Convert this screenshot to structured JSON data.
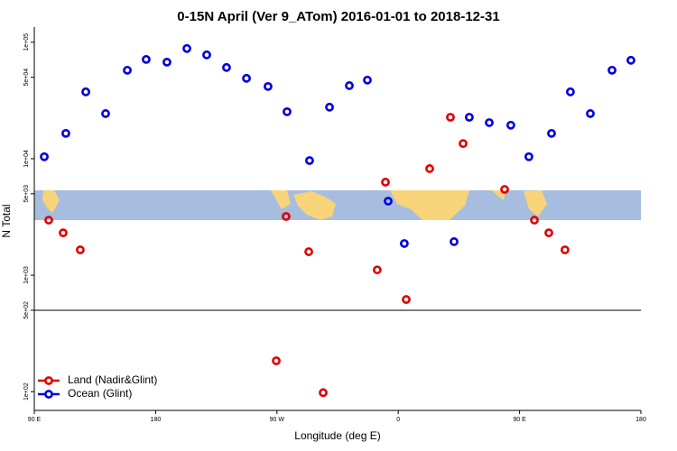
{
  "chart_data": {
    "type": "scatter",
    "title": "0-15N April (Ver 9_ATom)   2016-01-01 to 2018-12-31",
    "x_label": "Longitude (deg E)",
    "y_label": "N Total",
    "log_y": true,
    "legend": "lower left",
    "xlim": [
      90,
      540
    ],
    "xticks": [
      {
        "value": 90,
        "label": "90 E"
      },
      {
        "value": 180,
        "label": "180"
      },
      {
        "value": 270,
        "label": "90 W"
      },
      {
        "value": 360,
        "label": "0"
      },
      {
        "value": 450,
        "label": "90 E"
      },
      {
        "value": 540,
        "label": "180"
      }
    ],
    "ylim": [
      69,
      135000
    ],
    "yticks": [
      {
        "value": 100000,
        "label": "1e+05"
      },
      {
        "value": 50000,
        "label": "5e+04"
      },
      {
        "value": 10000,
        "label": "1e+04"
      },
      {
        "value": 5000,
        "label": "5e+03"
      },
      {
        "value": 1000,
        "label": "1e+03"
      },
      {
        "value": 500,
        "label": "5e+02"
      },
      {
        "value": 100,
        "label": "1e+02"
      }
    ],
    "series": [
      {
        "name": "Land (Nadir&Glint)",
        "color": "#e00000",
        "x": [
          100.7,
          111.4,
          124.1,
          276.8,
          269.5,
          293.6,
          304.3,
          344.4,
          350.5,
          365.9,
          383.3,
          398.7,
          408.1,
          438.9,
          461,
          471.7,
          483.7
        ],
        "values": [
          2970,
          2310,
          1650,
          3190,
          184,
          1590,
          98,
          1110,
          6290,
          618,
          8220,
          22700,
          13500,
          5450,
          2970,
          2310,
          1650
        ]
      },
      {
        "name": "Ocean (Glint)",
        "color": "#0000dd",
        "x": [
          97.4,
          113.4,
          128.2,
          142.9,
          159,
          173,
          188.4,
          203.2,
          217.9,
          232.6,
          247.4,
          263.4,
          277.5,
          294.2,
          309,
          323.7,
          337.1,
          352.5,
          364.5,
          401.4,
          412.7,
          427.5,
          443.5,
          456.9,
          473.7,
          487.7,
          502.5,
          518.6,
          532.6
        ],
        "values": [
          10400,
          16500,
          37500,
          24400,
          57500,
          71200,
          67500,
          88300,
          77900,
          60700,
          49000,
          41700,
          25300,
          9640,
          27700,
          42400,
          47300,
          4320,
          1870,
          1940,
          22700,
          20400,
          19400,
          10400,
          16500,
          37500,
          24400,
          57500,
          70000
        ]
      }
    ]
  }
}
